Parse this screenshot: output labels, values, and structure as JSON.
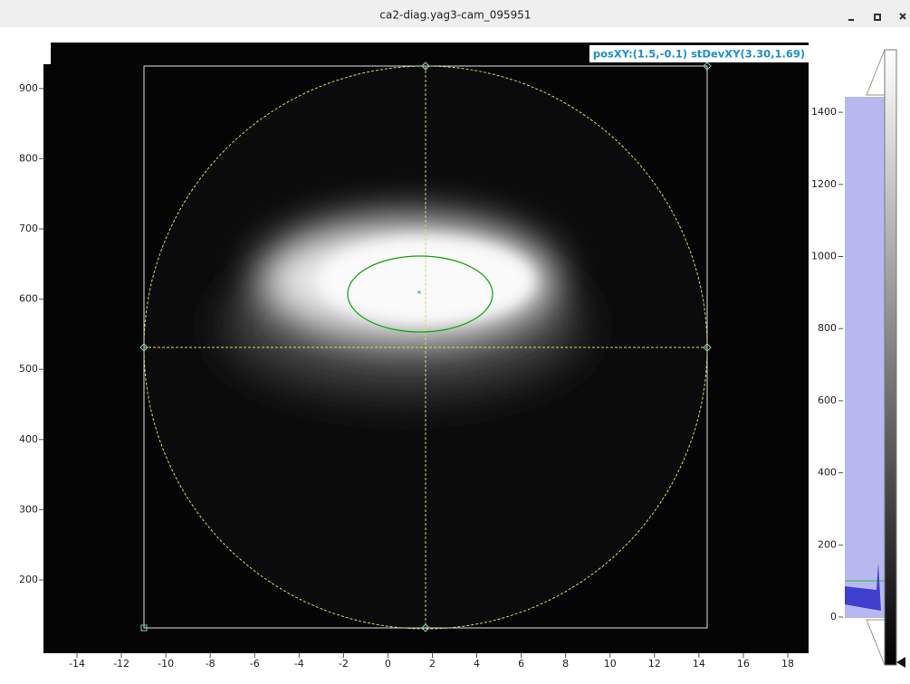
{
  "window": {
    "title": "ca2-diag.yag3-cam_095951"
  },
  "image_view": {
    "label": "posXY:(1.5,-0.1) stDevXY(3.30,1.69)",
    "x_ticks": [
      -14,
      -12,
      -10,
      -8,
      -6,
      -4,
      -2,
      0,
      2,
      4,
      6,
      8,
      10,
      12,
      14,
      16,
      18
    ],
    "y_ticks": [
      200,
      300,
      400,
      500,
      600,
      700,
      800,
      900
    ]
  },
  "histogram": {
    "ticks": [
      0,
      200,
      400,
      600,
      800,
      1000,
      1200,
      1400
    ]
  }
}
